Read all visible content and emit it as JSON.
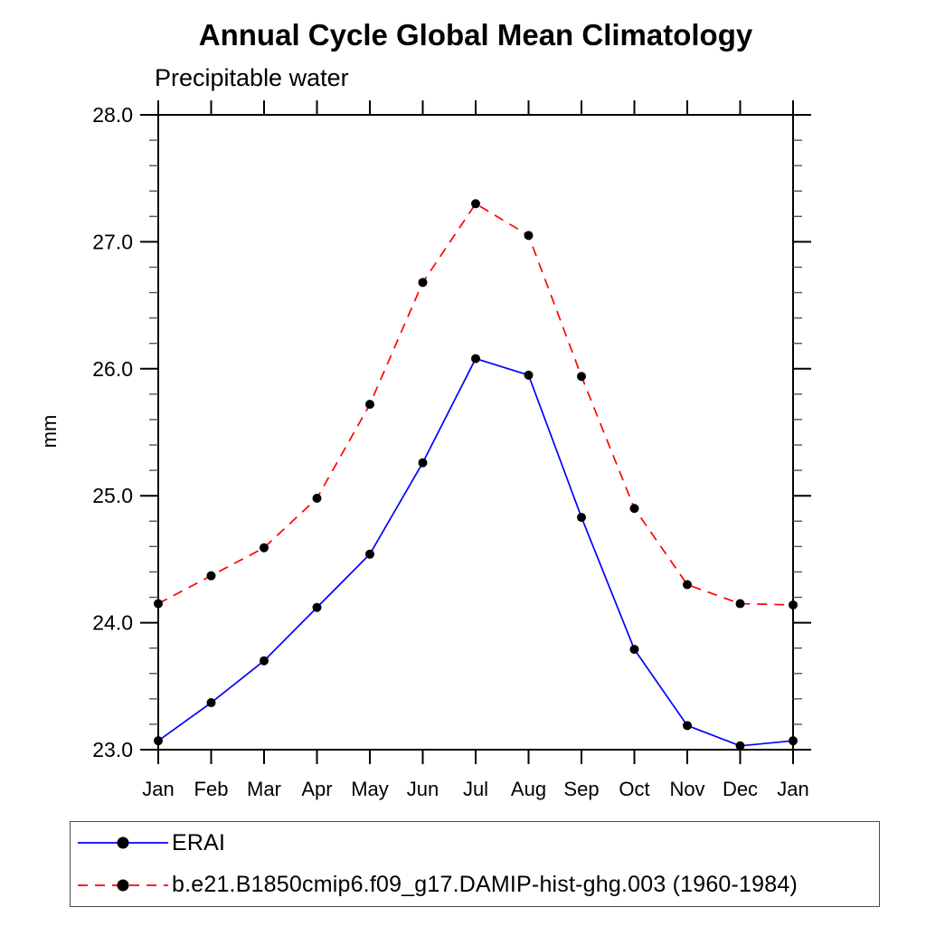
{
  "chart_data": {
    "type": "line",
    "title": "Annual Cycle Global Mean Climatology",
    "subtitle": "Precipitable water",
    "ylabel": "mm",
    "xlabel": "",
    "categories": [
      "Jan",
      "Feb",
      "Mar",
      "Apr",
      "May",
      "Jun",
      "Jul",
      "Aug",
      "Sep",
      "Oct",
      "Nov",
      "Dec",
      "Jan"
    ],
    "ylim": [
      23.0,
      28.0
    ],
    "y_major_tick_step": 1.0,
    "y_minor_tick_step": 0.2,
    "y_tick_labels": [
      "23.0",
      "24.0",
      "25.0",
      "26.0",
      "27.0",
      "28.0"
    ],
    "grid": false,
    "legend_position": "bottom-left",
    "series": [
      {
        "name": "ERAI",
        "color": "#0000ff",
        "line_style": "solid",
        "dasharray": "0",
        "marker": "filled-circle",
        "marker_color": "#000000",
        "values": [
          23.07,
          23.37,
          23.7,
          24.12,
          24.54,
          25.26,
          26.08,
          25.95,
          24.83,
          23.79,
          23.19,
          23.03,
          23.07
        ]
      },
      {
        "name": "b.e21.B1850cmip6.f09_g17.DAMIP-hist-ghg.003 (1960-1984)",
        "color": "#ff0000",
        "line_style": "dashed",
        "dasharray": "11 8",
        "marker": "filled-circle",
        "marker_color": "#000000",
        "values": [
          24.15,
          24.37,
          24.59,
          24.98,
          25.72,
          26.68,
          27.3,
          27.05,
          25.94,
          24.9,
          24.3,
          24.15,
          24.14
        ]
      }
    ]
  }
}
